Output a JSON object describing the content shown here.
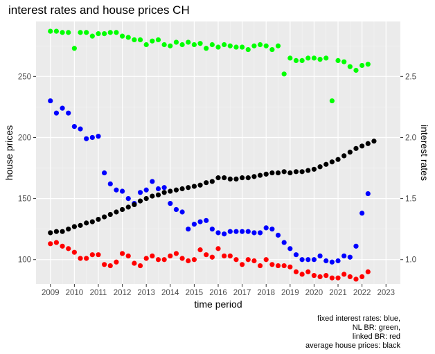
{
  "chart_data": {
    "type": "scatter",
    "title": "interest rates and house prices CH",
    "xlabel": "time period",
    "ylabel_left": "house prices",
    "ylabel_right": "interest rates",
    "x_ticks": [
      "2009",
      "2010",
      "2011",
      "2012",
      "2013",
      "2014",
      "2015",
      "2016",
      "2017",
      "2018",
      "2019",
      "2020",
      "2021",
      "2022",
      "2023"
    ],
    "y_left_ticks": [
      100,
      150,
      200,
      250
    ],
    "y_right_ticks": [
      "1.0",
      "1.5",
      "2.0",
      "2.5"
    ],
    "xlim": [
      2008.4,
      2023.6
    ],
    "ylim_left": [
      80,
      295
    ],
    "ylim_right": [
      0.8,
      2.95
    ],
    "grid": true,
    "caption": [
      "fixed interest rates: blue,",
      "NL BR: green,",
      "linked BR: red",
      "average house prices: black"
    ],
    "series": [
      {
        "color": "#0000ff",
        "axis": "right",
        "x": [
          2009.0,
          2009.25,
          2009.5,
          2009.75,
          2010.0,
          2010.25,
          2010.5,
          2010.75,
          2011.0,
          2011.25,
          2011.5,
          2011.75,
          2012.0,
          2012.25,
          2012.5,
          2012.75,
          2013.0,
          2013.25,
          2013.5,
          2013.75,
          2014.0,
          2014.25,
          2014.5,
          2014.75,
          2015.0,
          2015.25,
          2015.5,
          2015.75,
          2016.0,
          2016.25,
          2016.5,
          2016.75,
          2017.0,
          2017.25,
          2017.5,
          2017.75,
          2018.0,
          2018.25,
          2018.5,
          2018.75,
          2019.0,
          2019.25,
          2019.5,
          2019.75,
          2020.0,
          2020.25,
          2020.5,
          2020.75,
          2021.0,
          2021.25,
          2021.5,
          2021.75,
          2022.0,
          2022.25
        ],
        "y": [
          2.3,
          2.2,
          2.24,
          2.2,
          2.09,
          2.07,
          1.99,
          2.0,
          2.01,
          1.71,
          1.62,
          1.57,
          1.56,
          1.5,
          1.46,
          1.55,
          1.57,
          1.64,
          1.58,
          1.59,
          1.46,
          1.41,
          1.39,
          1.25,
          1.29,
          1.31,
          1.32,
          1.25,
          1.22,
          1.21,
          1.23,
          1.23,
          1.23,
          1.23,
          1.22,
          1.22,
          1.26,
          1.25,
          1.2,
          1.14,
          1.09,
          1.04,
          1.0,
          1.0,
          1.0,
          1.03,
          0.99,
          0.98,
          0.99,
          1.03,
          1.02,
          1.11,
          1.38,
          1.54
        ]
      },
      {
        "color": "#00ff00",
        "axis": "right",
        "x": [
          2009.0,
          2009.25,
          2009.5,
          2009.75,
          2010.0,
          2010.25,
          2010.5,
          2010.75,
          2011.0,
          2011.25,
          2011.5,
          2011.75,
          2012.0,
          2012.25,
          2012.5,
          2012.75,
          2013.0,
          2013.25,
          2013.5,
          2013.75,
          2014.0,
          2014.25,
          2014.5,
          2014.75,
          2015.0,
          2015.25,
          2015.5,
          2015.75,
          2016.0,
          2016.25,
          2016.5,
          2016.75,
          2017.0,
          2017.25,
          2017.5,
          2017.75,
          2018.0,
          2018.25,
          2018.5,
          2018.75,
          2019.0,
          2019.25,
          2019.5,
          2019.75,
          2020.0,
          2020.25,
          2020.5,
          2020.75,
          2021.0,
          2021.25,
          2021.5,
          2021.75,
          2022.0,
          2022.25
        ],
        "y": [
          2.87,
          2.87,
          2.86,
          2.86,
          2.73,
          2.86,
          2.86,
          2.83,
          2.85,
          2.85,
          2.86,
          2.86,
          2.83,
          2.82,
          2.8,
          2.8,
          2.76,
          2.79,
          2.8,
          2.76,
          2.75,
          2.78,
          2.76,
          2.78,
          2.76,
          2.77,
          2.73,
          2.76,
          2.74,
          2.76,
          2.75,
          2.74,
          2.74,
          2.72,
          2.75,
          2.76,
          2.75,
          2.72,
          2.75,
          2.52,
          2.65,
          2.63,
          2.63,
          2.65,
          2.65,
          2.64,
          2.65,
          2.3,
          2.63,
          2.62,
          2.58,
          2.55,
          2.59,
          2.6
        ]
      },
      {
        "color": "#ff0000",
        "axis": "right",
        "x": [
          2009.0,
          2009.25,
          2009.5,
          2009.75,
          2010.0,
          2010.25,
          2010.5,
          2010.75,
          2011.0,
          2011.25,
          2011.5,
          2011.75,
          2012.0,
          2012.25,
          2012.5,
          2012.75,
          2013.0,
          2013.25,
          2013.5,
          2013.75,
          2014.0,
          2014.25,
          2014.5,
          2014.75,
          2015.0,
          2015.25,
          2015.5,
          2015.75,
          2016.0,
          2016.25,
          2016.5,
          2016.75,
          2017.0,
          2017.25,
          2017.5,
          2017.75,
          2018.0,
          2018.25,
          2018.5,
          2018.75,
          2019.0,
          2019.25,
          2019.5,
          2019.75,
          2020.0,
          2020.25,
          2020.5,
          2020.75,
          2021.0,
          2021.25,
          2021.5,
          2021.75,
          2022.0,
          2022.25
        ],
        "y": [
          1.13,
          1.14,
          1.11,
          1.09,
          1.06,
          1.01,
          1.01,
          1.04,
          1.04,
          0.96,
          0.95,
          0.98,
          1.05,
          1.03,
          0.97,
          0.95,
          1.01,
          1.03,
          1.0,
          1.0,
          1.03,
          1.05,
          1.01,
          0.99,
          1.0,
          1.08,
          1.04,
          1.02,
          1.09,
          1.03,
          1.03,
          1.0,
          0.96,
          1.0,
          0.99,
          0.95,
          1.0,
          0.96,
          0.95,
          0.95,
          0.94,
          0.9,
          0.88,
          0.9,
          0.87,
          0.86,
          0.87,
          0.85,
          0.85,
          0.88,
          0.86,
          0.84,
          0.86,
          0.9
        ]
      },
      {
        "color": "#000000",
        "axis": "left",
        "x": [
          2009.0,
          2009.25,
          2009.5,
          2009.75,
          2010.0,
          2010.25,
          2010.5,
          2010.75,
          2011.0,
          2011.25,
          2011.5,
          2011.75,
          2012.0,
          2012.25,
          2012.5,
          2012.75,
          2013.0,
          2013.25,
          2013.5,
          2013.75,
          2014.0,
          2014.25,
          2014.5,
          2014.75,
          2015.0,
          2015.25,
          2015.5,
          2015.75,
          2016.0,
          2016.25,
          2016.5,
          2016.75,
          2017.0,
          2017.25,
          2017.5,
          2017.75,
          2018.0,
          2018.25,
          2018.5,
          2018.75,
          2019.0,
          2019.25,
          2019.5,
          2019.75,
          2020.0,
          2020.25,
          2020.5,
          2020.75,
          2021.0,
          2021.25,
          2021.5,
          2021.75,
          2022.0,
          2022.25,
          2022.5
        ],
        "y": [
          122,
          123,
          123,
          125,
          127,
          128,
          130,
          131,
          133,
          135,
          137,
          139,
          141,
          143,
          145,
          148,
          150,
          152,
          153,
          155,
          156,
          157,
          158,
          159,
          160,
          161,
          163,
          164,
          167,
          167,
          166,
          166,
          167,
          167,
          168,
          169,
          170,
          171,
          171,
          172,
          171,
          172,
          172,
          173,
          174,
          176,
          178,
          180,
          182,
          185,
          188,
          191,
          193,
          195,
          197
        ]
      }
    ]
  }
}
